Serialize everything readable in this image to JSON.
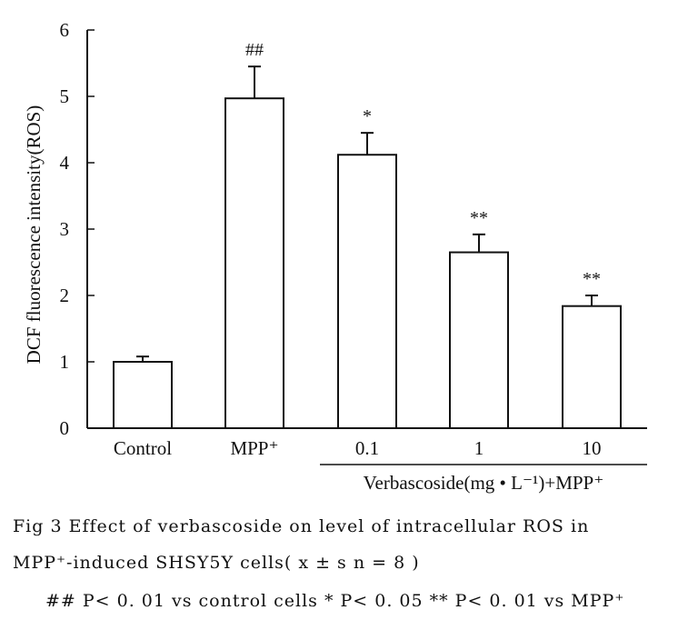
{
  "chart_data": {
    "type": "bar",
    "categories": [
      "Control",
      "MPP⁺",
      "0.1",
      "1",
      "10"
    ],
    "values": [
      1.0,
      4.97,
      4.12,
      2.65,
      1.84
    ],
    "errors": [
      0.08,
      0.48,
      0.33,
      0.27,
      0.16
    ],
    "significance": [
      "",
      "##",
      "*",
      "**",
      "**"
    ],
    "ylabel": "DCF fluorescence intensity(ROS)",
    "group_label": "Verbascoside(mg • L⁻¹)+MPP⁺",
    "ylim": [
      0,
      6
    ],
    "yticks": [
      0,
      1,
      2,
      3,
      4,
      5,
      6
    ],
    "grid": false
  },
  "caption": {
    "line1": "Fig 3   Effect of verbascoside on level of intracellular ROS in",
    "line2": "MPP⁺-induced SHSY5Y cells( x ± s n = 8 )",
    "line3": "## P< 0. 01 vs control cells * P< 0. 05  ** P< 0. 01 vs MPP⁺"
  }
}
